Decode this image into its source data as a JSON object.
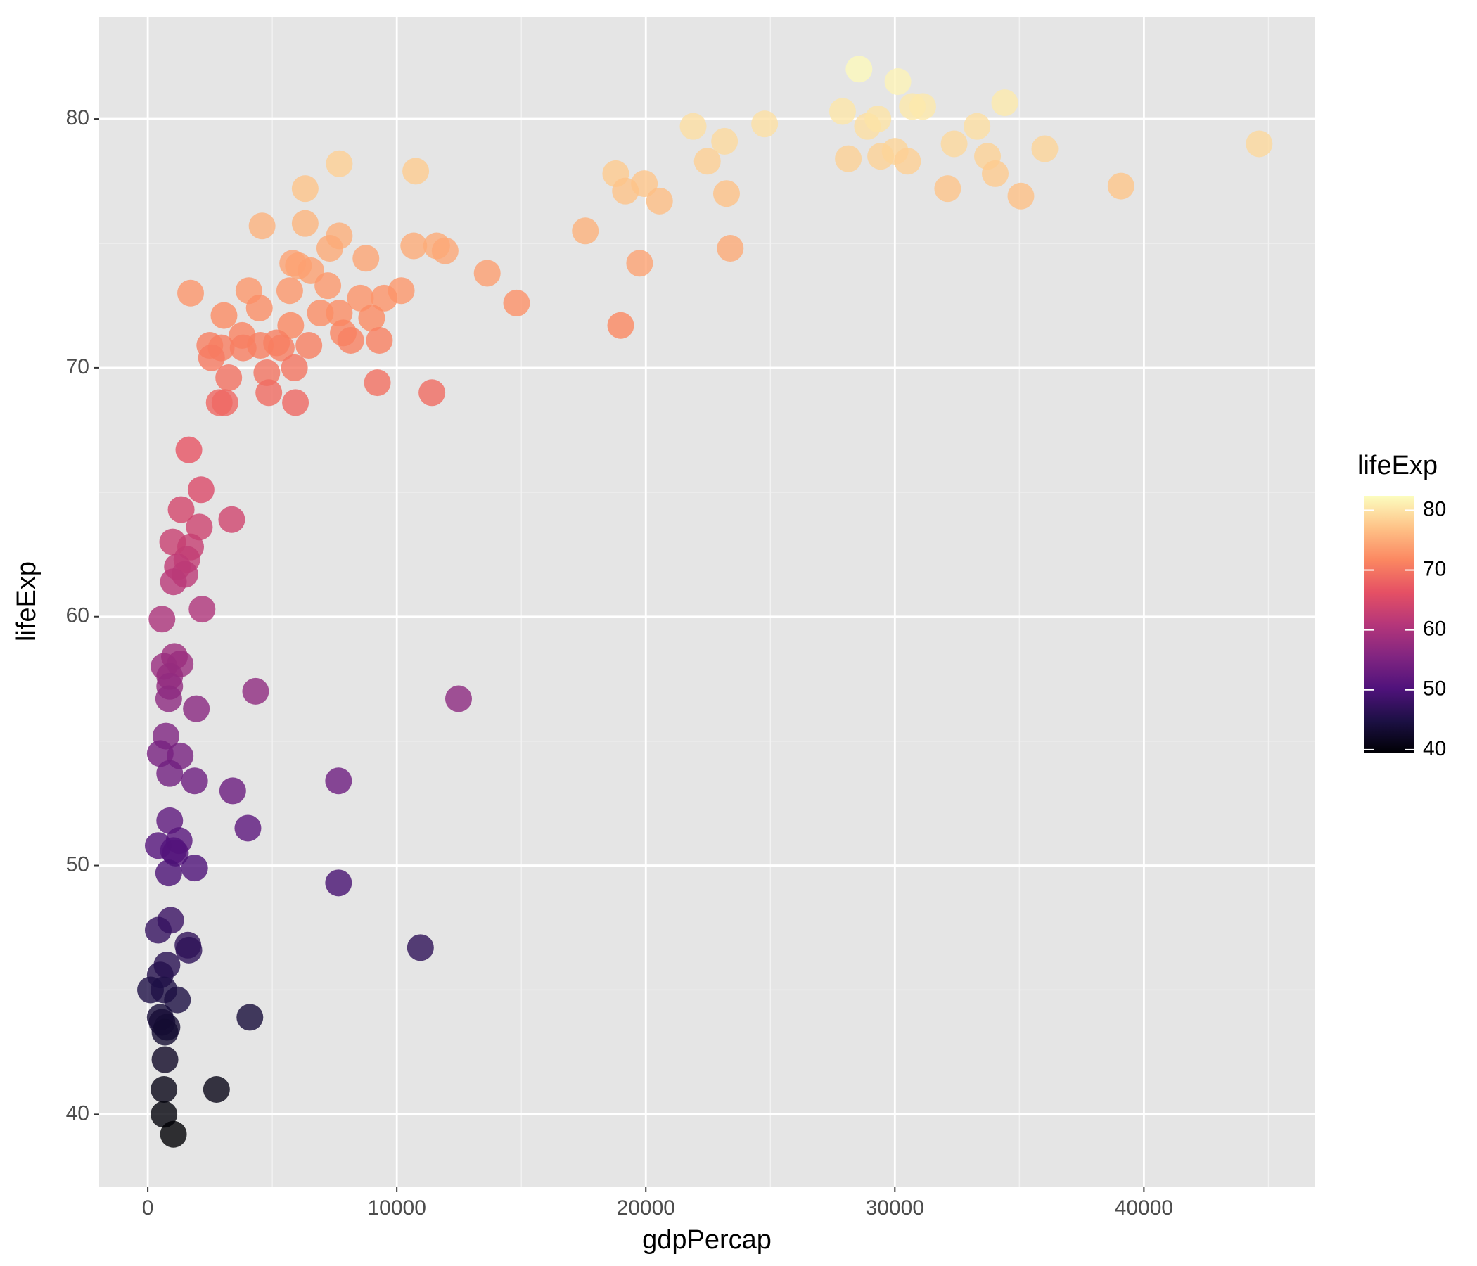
{
  "chart_data": {
    "type": "scatter",
    "x_label": "gdpPercap",
    "y_label": "lifeExp",
    "x": [
      28560,
      30120,
      30700,
      31120,
      34410,
      27900,
      28900,
      29320,
      21900,
      24770,
      23160,
      33300,
      32380,
      36020,
      44630,
      28130,
      29430,
      30010,
      30510,
      33720,
      34030,
      32120,
      35060,
      39080,
      22470,
      18790,
      19940,
      19180,
      20550,
      23240,
      17570,
      19750,
      23390,
      18990,
      14810,
      13630,
      10760,
      7690,
      6320,
      6320,
      4590,
      10680,
      11600,
      11940,
      7690,
      7310,
      8760,
      5820,
      6050,
      6550,
      1720,
      4060,
      5700,
      7230,
      10180,
      8540,
      9490,
      4480,
      3060,
      6930,
      7690,
      8990,
      5740,
      3790,
      7850,
      8150,
      9300,
      2490,
      2950,
      3830,
      4520,
      5170,
      5360,
      6470,
      2560,
      3250,
      4780,
      5890,
      4860,
      9220,
      11410,
      2870,
      3100,
      5930,
      1650,
      2140,
      1340,
      3370,
      2070,
      1000,
      1720,
      1570,
      1190,
      1490,
      1030,
      2180,
      570,
      1070,
      1300,
      650,
      880,
      880,
      4330,
      12480,
      840,
      1950,
      730,
      500,
      1300,
      880,
      1880,
      7660,
      3410,
      880,
      4020,
      420,
      1260,
      1030,
      1110,
      840,
      1880,
      7660,
      920,
      420,
      1610,
      1650,
      10950,
      770,
      500,
      110,
      650,
      1190,
      500,
      4100,
      570,
      770,
      690,
      690,
      650,
      2760,
      650,
      1030
    ],
    "y": [
      82.0,
      81.5,
      80.5,
      80.5,
      80.65,
      80.3,
      79.7,
      80.0,
      79.7,
      79.8,
      79.1,
      79.7,
      79.0,
      78.8,
      79.0,
      78.4,
      78.5,
      78.7,
      78.3,
      78.5,
      77.8,
      77.2,
      76.9,
      77.3,
      78.3,
      77.8,
      77.4,
      77.1,
      76.7,
      77.0,
      75.5,
      74.2,
      74.8,
      71.7,
      72.6,
      73.8,
      77.9,
      78.2,
      77.2,
      75.8,
      75.7,
      74.9,
      74.9,
      74.7,
      75.3,
      74.8,
      74.4,
      74.2,
      74.1,
      73.9,
      73.0,
      73.1,
      73.1,
      73.3,
      73.1,
      72.8,
      72.8,
      72.4,
      72.1,
      72.2,
      72.2,
      72.0,
      71.7,
      71.3,
      71.4,
      71.1,
      71.1,
      70.9,
      70.8,
      70.8,
      70.9,
      71.0,
      70.8,
      70.9,
      70.4,
      69.6,
      69.8,
      70.0,
      69.0,
      69.4,
      69.0,
      68.6,
      68.6,
      68.6,
      66.7,
      65.1,
      64.3,
      63.9,
      63.6,
      63.0,
      62.8,
      62.3,
      62.0,
      61.7,
      61.4,
      60.3,
      59.9,
      58.4,
      58.1,
      58.0,
      57.6,
      57.2,
      57.0,
      56.7,
      56.7,
      56.3,
      55.2,
      54.5,
      54.4,
      53.7,
      53.4,
      53.4,
      53.0,
      51.8,
      51.5,
      50.8,
      51.0,
      50.6,
      50.5,
      49.7,
      49.9,
      49.3,
      47.8,
      47.4,
      46.8,
      46.6,
      46.7,
      46.0,
      45.6,
      45.0,
      45.0,
      44.6,
      43.9,
      43.9,
      43.7,
      43.5,
      43.3,
      42.2,
      41.0,
      41.0,
      40.0,
      39.2
    ],
    "xlim": [
      -1952,
      46852
    ],
    "ylim": [
      37.1,
      84.1
    ],
    "xticks": [
      0,
      10000,
      20000,
      30000,
      40000
    ],
    "yticks": [
      40,
      50,
      60,
      70,
      80
    ],
    "grid": true,
    "opacity": 0.8,
    "color_scale": {
      "title": "lifeExp",
      "lim": [
        39.4,
        82.4
      ],
      "ticks": [
        40,
        50,
        60,
        70,
        80
      ],
      "colors": [
        "#000004",
        "#1c1044",
        "#4f127b",
        "#812581",
        "#b5367a",
        "#e55064",
        "#fb8761",
        "#fec287",
        "#fcfdbf"
      ]
    }
  }
}
